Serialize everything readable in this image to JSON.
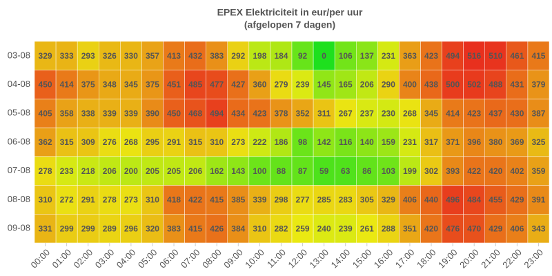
{
  "chart_data": {
    "type": "heatmap",
    "title": "EPEX Elektriciteit in eur/per uur",
    "subtitle": "(afgelopen 7 dagen)",
    "x": [
      "00:00",
      "01:00",
      "02:00",
      "03:00",
      "04:00",
      "05:00",
      "06:00",
      "07:00",
      "08:00",
      "09:00",
      "10:00",
      "11:00",
      "12:00",
      "13:00",
      "14:00",
      "15:00",
      "16:00",
      "17:00",
      "18:00",
      "19:00",
      "20:00",
      "21:00",
      "22:00",
      "23:00"
    ],
    "y": [
      "03-08",
      "04-08",
      "05-08",
      "06-08",
      "07-08",
      "08-08",
      "09-08"
    ],
    "colors": [
      "#1ee01e",
      "#eaea12",
      "#e8301e"
    ],
    "values": [
      [
        329,
        333,
        293,
        326,
        330,
        357,
        413,
        432,
        383,
        292,
        198,
        184,
        92,
        0,
        106,
        137,
        231,
        363,
        423,
        494,
        516,
        510,
        461,
        415
      ],
      [
        450,
        414,
        375,
        348,
        345,
        375,
        451,
        485,
        477,
        427,
        360,
        279,
        239,
        145,
        165,
        206,
        290,
        400,
        438,
        500,
        502,
        488,
        431,
        379
      ],
      [
        405,
        358,
        338,
        339,
        339,
        390,
        450,
        468,
        494,
        434,
        423,
        378,
        352,
        311,
        267,
        237,
        230,
        268,
        345,
        414,
        423,
        437,
        430,
        387
      ],
      [
        362,
        315,
        309,
        276,
        268,
        295,
        291,
        315,
        310,
        273,
        222,
        186,
        98,
        142,
        116,
        140,
        159,
        231,
        317,
        371,
        396,
        380,
        369,
        325
      ],
      [
        278,
        233,
        218,
        206,
        200,
        205,
        205,
        206,
        162,
        143,
        100,
        88,
        87,
        59,
        63,
        86,
        103,
        199,
        302,
        393,
        422,
        420,
        402,
        359
      ],
      [
        310,
        272,
        291,
        278,
        273,
        310,
        418,
        422,
        415,
        385,
        339,
        298,
        277,
        285,
        283,
        305,
        329,
        406,
        440,
        496,
        484,
        455,
        429,
        391
      ],
      [
        331,
        299,
        299,
        289,
        296,
        320,
        383,
        415,
        426,
        384,
        310,
        282,
        259,
        240,
        239,
        261,
        288,
        351,
        420,
        476,
        470,
        429,
        406,
        343
      ]
    ]
  }
}
